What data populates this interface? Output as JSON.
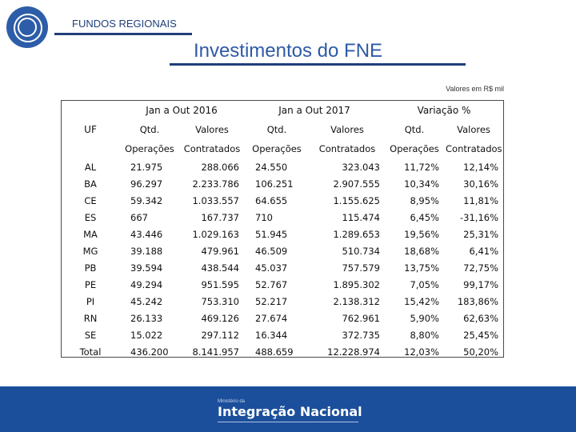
{
  "header": {
    "section_label": "FUNDOS REGIONAIS",
    "title": "Investimentos do FNE",
    "units_note": "Valores em R$ mil"
  },
  "table": {
    "uf_header": "UF",
    "periods": [
      "Jan a Out 2016",
      "Jan a Out 2017",
      "Variação %"
    ],
    "qtd_label": "Qtd.",
    "valores_label": "Valores",
    "operacoes_label": "Operações",
    "contratados_label": "Contratados",
    "rows": [
      {
        "uf": "AL",
        "q16": "21.975",
        "v16": "288.066",
        "q17": "24.550",
        "v17": "323.043",
        "qp": "11,72%",
        "vp": "12,14%"
      },
      {
        "uf": "BA",
        "q16": "96.297",
        "v16": "2.233.786",
        "q17": "106.251",
        "v17": "2.907.555",
        "qp": "10,34%",
        "vp": "30,16%"
      },
      {
        "uf": "CE",
        "q16": "59.342",
        "v16": "1.033.557",
        "q17": "64.655",
        "v17": "1.155.625",
        "qp": "8,95%",
        "vp": "11,81%"
      },
      {
        "uf": "ES",
        "q16": "667",
        "v16": "167.737",
        "q17": "710",
        "v17": "115.474",
        "qp": "6,45%",
        "vp": "-31,16%"
      },
      {
        "uf": "MA",
        "q16": "43.446",
        "v16": "1.029.163",
        "q17": "51.945",
        "v17": "1.289.653",
        "qp": "19,56%",
        "vp": "25,31%"
      },
      {
        "uf": "MG",
        "q16": "39.188",
        "v16": "479.961",
        "q17": "46.509",
        "v17": "510.734",
        "qp": "18,68%",
        "vp": "6,41%"
      },
      {
        "uf": "PB",
        "q16": "39.594",
        "v16": "438.544",
        "q17": "45.037",
        "v17": "757.579",
        "qp": "13,75%",
        "vp": "72,75%"
      },
      {
        "uf": "PE",
        "q16": "49.294",
        "v16": "951.595",
        "q17": "52.767",
        "v17": "1.895.302",
        "qp": "7,05%",
        "vp": "99,17%"
      },
      {
        "uf": "PI",
        "q16": "45.242",
        "v16": "753.310",
        "q17": "52.217",
        "v17": "2.138.312",
        "qp": "15,42%",
        "vp": "183,86%"
      },
      {
        "uf": "RN",
        "q16": "26.133",
        "v16": "469.126",
        "q17": "27.674",
        "v17": "762.961",
        "qp": "5,90%",
        "vp": "62,63%"
      },
      {
        "uf": "SE",
        "q16": "15.022",
        "v16": "297.112",
        "q17": "16.344",
        "v17": "372.735",
        "qp": "8,80%",
        "vp": "25,45%"
      },
      {
        "uf": "Total",
        "q16": "436.200",
        "v16": "8.141.957",
        "q17": "488.659",
        "v17": "12.228.974",
        "qp": "12,03%",
        "vp": "50,20%"
      }
    ]
  },
  "footer": {
    "ministry_label": "Ministério da",
    "brand": "Integração Nacional"
  },
  "colors": {
    "brand_blue": "#1b4f9b",
    "title_blue": "#2e5aa7",
    "rule_navy": "#1f3f7a"
  }
}
